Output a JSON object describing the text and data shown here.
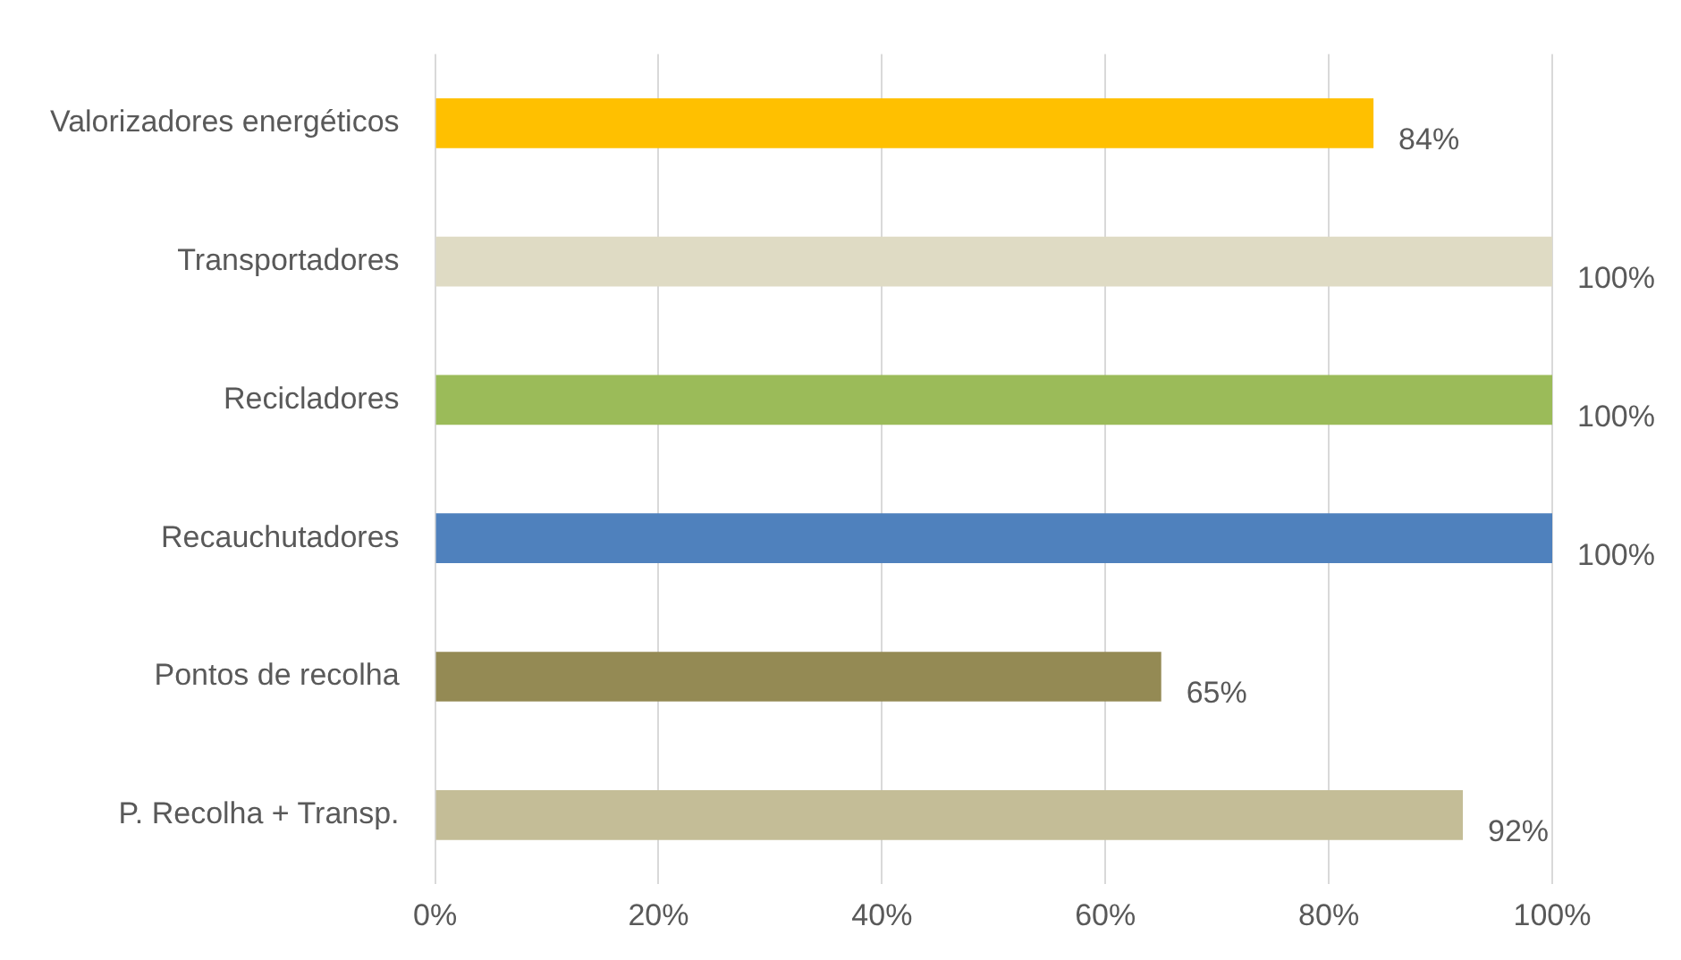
{
  "chart_data": {
    "type": "bar",
    "orientation": "horizontal",
    "categories": [
      "Valorizadores energéticos",
      "Transportadores",
      "Recicladores",
      "Recauchutadores",
      "Pontos de recolha",
      "P. Recolha + Transp."
    ],
    "values": [
      84,
      100,
      100,
      100,
      65,
      92
    ],
    "colors": [
      "#ffc000",
      "#dfdbc4",
      "#9bbb59",
      "#4f81bd",
      "#948a54",
      "#c4bd97"
    ],
    "value_labels": [
      "84%",
      "100%",
      "100%",
      "100%",
      "65%",
      "92%"
    ],
    "xlim": [
      0,
      100
    ],
    "xticks": [
      {
        "value": 0,
        "label": "0%"
      },
      {
        "value": 20,
        "label": "20%"
      },
      {
        "value": 40,
        "label": "40%"
      },
      {
        "value": 60,
        "label": "60%"
      },
      {
        "value": 80,
        "label": "80%"
      },
      {
        "value": 100,
        "label": "100%"
      }
    ],
    "grid": "x",
    "legend": false
  }
}
